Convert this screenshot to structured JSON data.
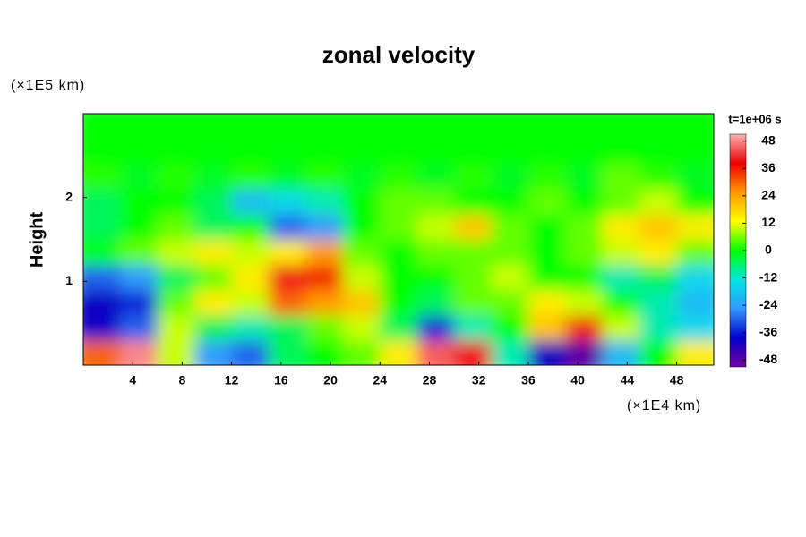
{
  "chart_data": {
    "type": "heatmap",
    "title": "zonal velocity",
    "y_unit": "(×1E5 km)",
    "x_unit": "(×1E4 km)",
    "y_label": "Height",
    "colorbar_title": "t=1e+06 s",
    "xlim": [
      0,
      51
    ],
    "ylim": [
      0,
      3
    ],
    "xticks": [
      4,
      8,
      12,
      16,
      20,
      24,
      28,
      32,
      36,
      40,
      44,
      48
    ],
    "yticks": [
      1,
      2
    ],
    "x": [
      1.5,
      4.5,
      7.5,
      10.5,
      13.5,
      16.5,
      19.5,
      22.5,
      25.5,
      28.5,
      31.5,
      34.5,
      37.5,
      40.5,
      43.5,
      46.5,
      49.5
    ],
    "y": [
      0.15,
      0.45,
      0.75,
      1.05,
      1.35,
      1.65,
      1.95,
      2.25,
      2.55,
      2.85
    ],
    "z": [
      [
        30,
        48,
        10,
        -25,
        -30,
        -5,
        0,
        5,
        15,
        45,
        40,
        -10,
        -40,
        -48,
        -20,
        0,
        15
      ],
      [
        -40,
        -30,
        10,
        -5,
        -10,
        -5,
        5,
        10,
        -5,
        -35,
        -10,
        0,
        20,
        35,
        10,
        -10,
        -15
      ],
      [
        -40,
        -35,
        5,
        15,
        10,
        30,
        25,
        20,
        0,
        -5,
        5,
        5,
        15,
        10,
        0,
        -10,
        -20
      ],
      [
        -30,
        -25,
        -5,
        5,
        15,
        40,
        35,
        10,
        0,
        0,
        5,
        10,
        0,
        0,
        -10,
        -5,
        -15
      ],
      [
        0,
        5,
        10,
        15,
        10,
        15,
        25,
        5,
        0,
        5,
        5,
        5,
        0,
        5,
        10,
        15,
        5
      ],
      [
        -5,
        0,
        5,
        -5,
        0,
        -30,
        -25,
        0,
        5,
        10,
        20,
        5,
        0,
        5,
        15,
        20,
        15
      ],
      [
        -5,
        0,
        0,
        -5,
        -20,
        -15,
        -10,
        0,
        5,
        5,
        0,
        0,
        5,
        0,
        5,
        10,
        0
      ],
      [
        2,
        -2,
        2,
        -2,
        2,
        -2,
        2,
        -2,
        2,
        -2,
        2,
        -2,
        2,
        -2,
        5,
        2,
        -2
      ],
      [
        0,
        0,
        0,
        0,
        0,
        0,
        0,
        0,
        0,
        0,
        0,
        0,
        0,
        0,
        0,
        0,
        0
      ],
      [
        0,
        0,
        0,
        0,
        0,
        0,
        0,
        0,
        0,
        0,
        0,
        0,
        0,
        0,
        0,
        0,
        0
      ]
    ],
    "clim": [
      -51,
      51
    ],
    "cticks": [
      -48,
      -36,
      -24,
      -12,
      0,
      12,
      24,
      36,
      48
    ],
    "colormap": [
      "#7b0099",
      "#0000cc",
      "#3399ff",
      "#00e5e5",
      "#00ff00",
      "#ffff00",
      "#ff9900",
      "#ee0000",
      "#ffb0b0"
    ]
  }
}
